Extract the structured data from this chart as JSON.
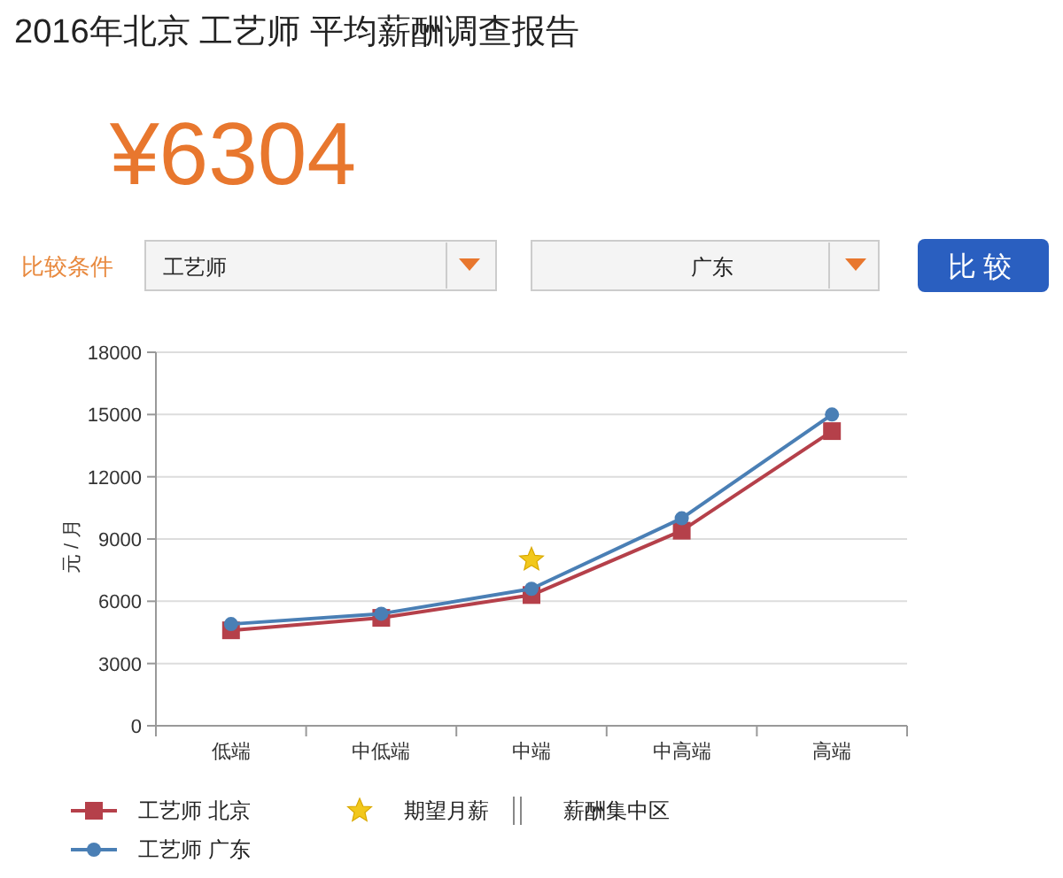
{
  "chart_data": {
    "type": "line",
    "title": "2016年北京 工艺师 平均薪酬调查报告",
    "subtitle": "¥6304",
    "annotations": [
      "比较条件",
      "工艺师",
      "广东",
      "比较",
      "薪酬集中区"
    ],
    "ylabel": "元 / 月",
    "categories": [
      "低端",
      "中低端",
      "中端",
      "中高端",
      "高端"
    ],
    "series": [
      {
        "name": "工艺师 北京",
        "color": "#b5404a",
        "marker": "square",
        "values": [
          4600,
          5200,
          6300,
          9400,
          14200
        ]
      },
      {
        "name": "工艺师 广东",
        "color": "#4a7fb5",
        "marker": "circle",
        "values": [
          4900,
          5400,
          6600,
          10000,
          15000
        ]
      },
      {
        "name": "期望月薪",
        "type": "scatter",
        "color": "#f2c81c",
        "marker": "star",
        "values": [
          null,
          null,
          8000,
          null,
          null
        ]
      }
    ],
    "ylim": [
      0,
      18000
    ],
    "yticks": [
      0,
      3000,
      6000,
      9000,
      12000,
      15000,
      18000
    ],
    "grid": "y",
    "legend": "bottom left"
  }
}
